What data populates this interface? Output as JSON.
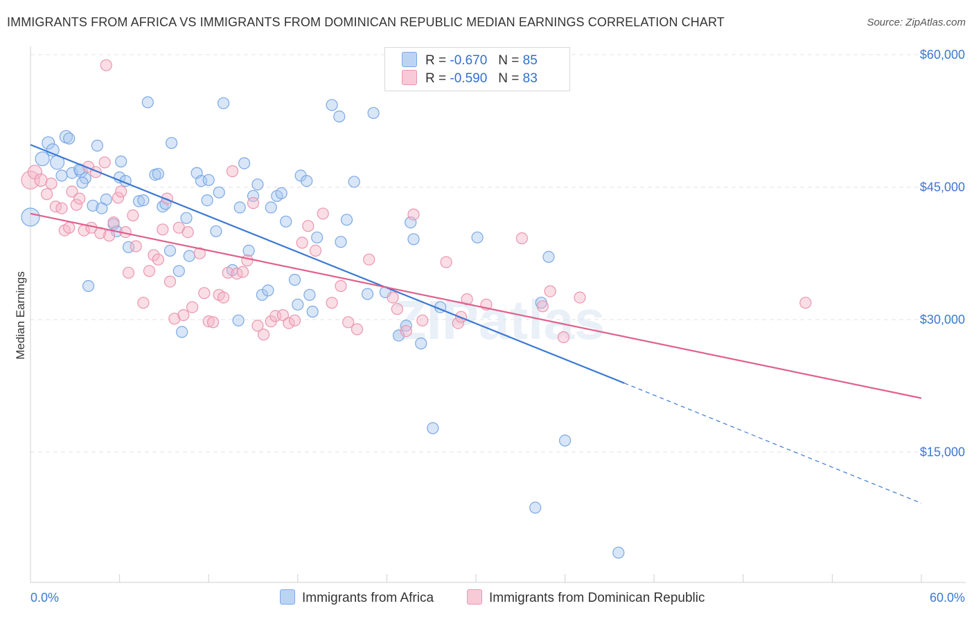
{
  "title": "IMMIGRANTS FROM AFRICA VS IMMIGRANTS FROM DOMINICAN REPUBLIC MEDIAN EARNINGS CORRELATION CHART",
  "source": "Source: ZipAtlas.com",
  "watermark": "ZIPatlas",
  "legend": {
    "rows": [
      {
        "r_label": "R =",
        "r_value": "-0.670",
        "n_label": "N =",
        "n_value": "85",
        "color": "#a9c8f0"
      },
      {
        "r_label": "R =",
        "r_value": "-0.590",
        "n_label": "N =",
        "n_value": "83",
        "color": "#f4b6c8"
      }
    ]
  },
  "bottom_legend": [
    {
      "label": "Immigrants from Africa",
      "color": "#a9c8f0"
    },
    {
      "label": "Immigrants from Dominican Republic",
      "color": "#f4b6c8"
    }
  ],
  "chart_data": {
    "type": "scatter",
    "title": "IMMIGRANTS FROM AFRICA VS IMMIGRANTS FROM DOMINICAN REPUBLIC MEDIAN EARNINGS CORRELATION CHART",
    "xlabel": "",
    "ylabel": "Median Earnings",
    "xlim": [
      0,
      60
    ],
    "ylim": [
      0,
      61000
    ],
    "x_tick_labels": [
      "0.0%",
      "60.0%"
    ],
    "y_ticks": [
      15000,
      30000,
      45000,
      60000
    ],
    "y_tick_labels": [
      "$15,000",
      "$30,000",
      "$45,000",
      "$60,000"
    ],
    "grid": true,
    "series": [
      {
        "name": "Immigrants from Africa",
        "color": "#3a78d4",
        "fill": "#a9c8f0",
        "stroke": "#7aa8e4",
        "trend": {
          "x0": 0,
          "y0": 49800,
          "x1": 40,
          "y1": 22800,
          "dash_to_x": 60,
          "dash_to_y": 9200
        },
        "points": [
          [
            0.0,
            41600,
            13
          ],
          [
            0.8,
            48200,
            10
          ],
          [
            1.2,
            50000,
            9
          ],
          [
            1.5,
            49200,
            9
          ],
          [
            1.8,
            47800,
            10
          ],
          [
            2.4,
            50700,
            9
          ],
          [
            2.6,
            50500,
            8
          ],
          [
            2.1,
            46300,
            8
          ],
          [
            2.8,
            46600,
            8
          ],
          [
            3.4,
            46800,
            9
          ],
          [
            3.7,
            46000,
            8
          ],
          [
            3.5,
            45500,
            8
          ],
          [
            3.3,
            47000,
            8
          ],
          [
            4.5,
            49700,
            8
          ],
          [
            5.1,
            43600,
            8
          ],
          [
            4.2,
            42900,
            8
          ],
          [
            5.6,
            40800,
            8
          ],
          [
            5.8,
            40000,
            8
          ],
          [
            6.0,
            46100,
            8
          ],
          [
            6.1,
            47900,
            8
          ],
          [
            6.4,
            45700,
            8
          ],
          [
            6.6,
            38200,
            8
          ],
          [
            7.3,
            43400,
            8
          ],
          [
            7.6,
            43500,
            8
          ],
          [
            7.9,
            54600,
            8
          ],
          [
            8.4,
            46400,
            8
          ],
          [
            8.6,
            46500,
            8
          ],
          [
            8.9,
            42800,
            8
          ],
          [
            9.1,
            43100,
            8
          ],
          [
            9.4,
            37800,
            8
          ],
          [
            9.5,
            50000,
            8
          ],
          [
            10.0,
            35500,
            8
          ],
          [
            10.5,
            41500,
            8
          ],
          [
            10.7,
            37200,
            8
          ],
          [
            11.2,
            46600,
            8
          ],
          [
            11.5,
            45700,
            8
          ],
          [
            11.9,
            43500,
            8
          ],
          [
            12.0,
            45800,
            8
          ],
          [
            12.5,
            40000,
            8
          ],
          [
            12.7,
            44400,
            8
          ],
          [
            13.0,
            54500,
            8
          ],
          [
            13.6,
            35600,
            8
          ],
          [
            14.1,
            42700,
            8
          ],
          [
            14.4,
            47700,
            8
          ],
          [
            14.7,
            37800,
            8
          ],
          [
            15.0,
            44000,
            8
          ],
          [
            15.3,
            45300,
            8
          ],
          [
            15.6,
            32800,
            8
          ],
          [
            16.0,
            33300,
            8
          ],
          [
            16.2,
            42700,
            8
          ],
          [
            16.6,
            44000,
            8
          ],
          [
            16.9,
            44300,
            8
          ],
          [
            17.2,
            41100,
            8
          ],
          [
            17.8,
            34500,
            8
          ],
          [
            18.0,
            31700,
            8
          ],
          [
            18.2,
            46300,
            8
          ],
          [
            18.6,
            45700,
            8
          ],
          [
            18.8,
            32800,
            8
          ],
          [
            19.3,
            39300,
            8
          ],
          [
            20.3,
            54300,
            8
          ],
          [
            20.8,
            53000,
            8
          ],
          [
            20.9,
            38800,
            8
          ],
          [
            21.3,
            41300,
            8
          ],
          [
            21.8,
            45600,
            8
          ],
          [
            22.7,
            32900,
            8
          ],
          [
            23.1,
            53400,
            8
          ],
          [
            23.9,
            33100,
            8
          ],
          [
            24.8,
            28200,
            8
          ],
          [
            25.3,
            29300,
            8
          ],
          [
            25.6,
            41000,
            8
          ],
          [
            25.8,
            39100,
            8
          ],
          [
            26.3,
            27300,
            8
          ],
          [
            27.1,
            17700,
            8
          ],
          [
            30.1,
            39300,
            8
          ],
          [
            34.0,
            8700,
            8
          ],
          [
            34.4,
            31900,
            8
          ],
          [
            34.9,
            37100,
            8
          ],
          [
            36.0,
            16300,
            8
          ],
          [
            39.6,
            3600,
            8
          ],
          [
            3.9,
            33800,
            8
          ],
          [
            4.8,
            42600,
            8
          ],
          [
            10.2,
            28600,
            8
          ],
          [
            14.0,
            29900,
            8
          ],
          [
            19.0,
            30900,
            8
          ],
          [
            27.6,
            31400,
            8
          ]
        ]
      },
      {
        "name": "Immigrants from Dominican Republic",
        "color": "#e0608a",
        "fill": "#f4b6c8",
        "stroke": "#eb95b0",
        "trend": {
          "x0": 0,
          "y0": 42000,
          "x1": 60,
          "y1": 21100
        },
        "points": [
          [
            0.0,
            45800,
            13
          ],
          [
            0.3,
            46700,
            10
          ],
          [
            0.7,
            45800,
            9
          ],
          [
            1.1,
            44200,
            8
          ],
          [
            1.4,
            45400,
            8
          ],
          [
            1.7,
            42800,
            8
          ],
          [
            2.1,
            42600,
            8
          ],
          [
            2.3,
            40100,
            8
          ],
          [
            2.6,
            40400,
            8
          ],
          [
            2.8,
            44500,
            8
          ],
          [
            3.1,
            43000,
            8
          ],
          [
            3.3,
            43700,
            8
          ],
          [
            3.6,
            40100,
            8
          ],
          [
            3.9,
            47300,
            8
          ],
          [
            4.1,
            40400,
            8
          ],
          [
            4.4,
            46700,
            8
          ],
          [
            4.7,
            39800,
            8
          ],
          [
            5.0,
            47800,
            8
          ],
          [
            5.1,
            58800,
            8
          ],
          [
            5.3,
            39500,
            8
          ],
          [
            5.6,
            41000,
            8
          ],
          [
            5.9,
            43800,
            8
          ],
          [
            6.1,
            44500,
            8
          ],
          [
            6.4,
            39900,
            8
          ],
          [
            6.6,
            35300,
            8
          ],
          [
            6.9,
            41800,
            8
          ],
          [
            7.1,
            38300,
            8
          ],
          [
            7.6,
            31900,
            8
          ],
          [
            8.0,
            35500,
            8
          ],
          [
            8.3,
            37300,
            8
          ],
          [
            8.6,
            36800,
            8
          ],
          [
            8.9,
            40200,
            8
          ],
          [
            9.2,
            43700,
            8
          ],
          [
            9.4,
            34300,
            8
          ],
          [
            9.7,
            30100,
            8
          ],
          [
            10.0,
            40400,
            8
          ],
          [
            10.3,
            30500,
            8
          ],
          [
            10.6,
            39900,
            8
          ],
          [
            10.9,
            31400,
            8
          ],
          [
            11.4,
            37500,
            8
          ],
          [
            11.7,
            33000,
            8
          ],
          [
            12.0,
            29800,
            8
          ],
          [
            12.3,
            29700,
            8
          ],
          [
            12.7,
            32800,
            8
          ],
          [
            13.0,
            32500,
            8
          ],
          [
            13.3,
            35300,
            8
          ],
          [
            13.6,
            46800,
            8
          ],
          [
            13.9,
            35200,
            8
          ],
          [
            14.3,
            35400,
            8
          ],
          [
            14.6,
            36700,
            8
          ],
          [
            15.0,
            43200,
            8
          ],
          [
            15.3,
            29300,
            8
          ],
          [
            15.7,
            28300,
            8
          ],
          [
            16.2,
            29800,
            8
          ],
          [
            16.5,
            30400,
            8
          ],
          [
            17.0,
            30500,
            8
          ],
          [
            17.4,
            29600,
            8
          ],
          [
            17.8,
            29900,
            8
          ],
          [
            18.3,
            38700,
            8
          ],
          [
            18.7,
            40600,
            8
          ],
          [
            19.2,
            37800,
            8
          ],
          [
            19.7,
            42000,
            8
          ],
          [
            20.3,
            31900,
            8
          ],
          [
            20.9,
            33800,
            8
          ],
          [
            21.4,
            29700,
            8
          ],
          [
            22.0,
            28900,
            8
          ],
          [
            22.8,
            36800,
            8
          ],
          [
            24.4,
            32500,
            8
          ],
          [
            24.7,
            31200,
            8
          ],
          [
            25.3,
            28700,
            8
          ],
          [
            25.8,
            41900,
            8
          ],
          [
            26.4,
            29900,
            8
          ],
          [
            28.0,
            36500,
            8
          ],
          [
            28.8,
            29600,
            8
          ],
          [
            29.0,
            30300,
            8
          ],
          [
            29.4,
            32300,
            8
          ],
          [
            30.7,
            31700,
            8
          ],
          [
            33.1,
            39200,
            8
          ],
          [
            34.5,
            31500,
            8
          ],
          [
            35.0,
            33200,
            8
          ],
          [
            35.9,
            28000,
            8
          ],
          [
            37.0,
            32500,
            8
          ],
          [
            52.2,
            31900,
            8
          ]
        ]
      }
    ]
  }
}
